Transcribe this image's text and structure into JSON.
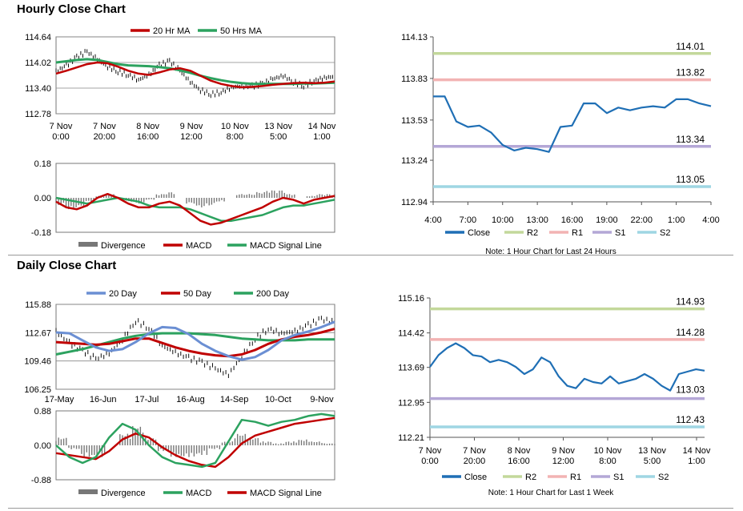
{
  "titles": {
    "hourly": "Hourly Close Chart",
    "daily": "Daily Close Chart"
  },
  "colors": {
    "ma20h": "#c00000",
    "ma50h": "#2ca25f",
    "divergence": "#777777",
    "macd_h": "#c00000",
    "signal_h": "#2ca25f",
    "close": "#1f6fb5",
    "r2": "#c3d89b",
    "r1": "#f2b3b3",
    "s1": "#b4a7d6",
    "s2": "#9fd6e3",
    "d20": "#6b8fd3",
    "d50": "#c00000",
    "d200": "#2ca25f",
    "macd_d": "#2ca25f",
    "signal_d": "#c00000"
  },
  "chart_data": [
    {
      "type": "line",
      "title": "Hourly Close Chart",
      "x_ticks": [
        "7 Nov\n0:00",
        "7 Nov\n20:00",
        "8 Nov\n16:00",
        "9 Nov\n12:00",
        "10 Nov\n8:00",
        "13 Nov\n5:00",
        "14 Nov\n1:00"
      ],
      "y_ticks": [
        "114.64",
        "114.02",
        "113.40",
        "112.78"
      ],
      "ylim": [
        112.78,
        114.64
      ],
      "legend": [
        "20 Hr MA",
        "50 Hrs MA"
      ],
      "legend_position": "top",
      "grid": true,
      "series": [
        {
          "name": "20 Hr MA",
          "values": [
            113.75,
            113.82,
            113.9,
            113.98,
            114.02,
            114.0,
            113.92,
            113.82,
            113.75,
            113.72,
            113.78,
            113.85,
            113.88,
            113.82,
            113.7,
            113.58,
            113.5,
            113.45,
            113.42,
            113.43,
            113.45,
            113.48,
            113.5,
            113.52,
            113.53,
            113.52,
            113.53,
            113.56
          ]
        },
        {
          "name": "50 Hrs MA",
          "values": [
            114.02,
            114.05,
            114.08,
            114.1,
            114.08,
            114.03,
            113.98,
            113.95,
            113.94,
            113.93,
            113.91,
            113.88,
            113.83,
            113.77,
            113.7,
            113.64,
            113.59,
            113.55,
            113.52,
            113.5,
            113.5,
            113.5,
            113.5,
            113.5,
            113.51,
            113.51,
            113.52,
            113.53
          ]
        },
        {
          "name": "Close",
          "values": [
            113.8,
            113.95,
            114.15,
            114.28,
            114.1,
            113.92,
            113.8,
            113.72,
            113.6,
            113.72,
            113.95,
            114.05,
            113.82,
            113.55,
            113.35,
            113.25,
            113.3,
            113.42,
            113.45,
            113.45,
            113.5,
            113.62,
            113.7,
            113.55,
            113.45,
            113.58,
            113.65,
            113.68
          ]
        }
      ]
    },
    {
      "type": "bar",
      "title": "",
      "y_ticks": [
        "0.18",
        "0.00",
        "-0.18"
      ],
      "ylim": [
        -0.18,
        0.18
      ],
      "legend": [
        "Divergence",
        "MACD",
        "MACD Signal Line"
      ],
      "legend_position": "bottom",
      "series": [
        {
          "name": "Divergence",
          "values": [
            -0.04,
            -0.06,
            -0.05,
            -0.02,
            0.01,
            0.02,
            0.0,
            -0.02,
            -0.03,
            -0.01,
            0.02,
            0.03,
            0.0,
            -0.03,
            -0.05,
            -0.04,
            -0.02,
            0.0,
            0.02,
            0.02,
            0.03,
            0.04,
            0.04,
            0.02,
            0.0,
            0.01,
            0.02,
            0.02
          ]
        },
        {
          "name": "MACD",
          "values": [
            -0.02,
            -0.05,
            -0.06,
            -0.04,
            0.0,
            0.02,
            0.0,
            -0.03,
            -0.05,
            -0.05,
            -0.03,
            -0.02,
            -0.04,
            -0.08,
            -0.12,
            -0.14,
            -0.13,
            -0.11,
            -0.09,
            -0.07,
            -0.05,
            -0.02,
            0.0,
            -0.01,
            -0.03,
            -0.01,
            0.0,
            0.01
          ]
        },
        {
          "name": "MACD Signal Line",
          "values": [
            0.0,
            -0.01,
            -0.02,
            -0.03,
            -0.02,
            -0.01,
            0.0,
            -0.01,
            -0.02,
            -0.04,
            -0.05,
            -0.05,
            -0.05,
            -0.06,
            -0.08,
            -0.1,
            -0.12,
            -0.12,
            -0.11,
            -0.1,
            -0.09,
            -0.07,
            -0.05,
            -0.04,
            -0.04,
            -0.03,
            -0.02,
            -0.01
          ]
        }
      ]
    },
    {
      "type": "line",
      "title": "",
      "x_ticks": [
        "4:00",
        "7:00",
        "10:00",
        "13:00",
        "16:00",
        "19:00",
        "22:00",
        "1:00",
        "4:00"
      ],
      "y_ticks": [
        "114.13",
        "113.83",
        "113.53",
        "113.24",
        "112.94"
      ],
      "ylim": [
        112.94,
        114.13
      ],
      "legend": [
        "Close",
        "R2",
        "R1",
        "S1",
        "S2"
      ],
      "legend_position": "bottom",
      "note": "Note: 1 Hour Chart for Last 24 Hours",
      "levels": [
        {
          "name": "R2",
          "value": 114.01,
          "label": "114.01"
        },
        {
          "name": "R1",
          "value": 113.82,
          "label": "113.82"
        },
        {
          "name": "S1",
          "value": 113.34,
          "label": "113.34"
        },
        {
          "name": "S2",
          "value": 113.05,
          "label": "113.05"
        }
      ],
      "series": [
        {
          "name": "Close",
          "values": [
            113.7,
            113.7,
            113.52,
            113.48,
            113.49,
            113.44,
            113.35,
            113.31,
            113.33,
            113.32,
            113.3,
            113.48,
            113.49,
            113.65,
            113.65,
            113.58,
            113.62,
            113.6,
            113.62,
            113.63,
            113.62,
            113.68,
            113.68,
            113.65,
            113.63
          ]
        }
      ]
    },
    {
      "type": "line",
      "title": "Daily Close Chart",
      "x_ticks": [
        "17-May",
        "16-Jun",
        "17-Jul",
        "16-Aug",
        "14-Sep",
        "10-Oct",
        "9-Nov"
      ],
      "y_ticks": [
        "115.88",
        "112.67",
        "109.46",
        "106.25"
      ],
      "ylim": [
        106.25,
        115.88
      ],
      "legend": [
        "20 Day",
        "50 Day",
        "200 Day"
      ],
      "legend_position": "top",
      "grid": true,
      "series": [
        {
          "name": "20 Day",
          "values": [
            112.7,
            112.6,
            111.8,
            111.0,
            110.6,
            110.8,
            111.6,
            112.6,
            113.3,
            113.2,
            112.5,
            111.4,
            110.6,
            110.0,
            109.6,
            109.9,
            110.7,
            111.8,
            112.4,
            112.8,
            113.3,
            113.9
          ]
        },
        {
          "name": "50 Day",
          "values": [
            111.6,
            111.5,
            111.4,
            111.3,
            111.4,
            111.7,
            112.0,
            112.0,
            111.5,
            111.0,
            110.6,
            110.3,
            110.1,
            110.0,
            110.2,
            110.7,
            111.4,
            111.9,
            112.2,
            112.4,
            112.7,
            113.1
          ]
        },
        {
          "name": "200 Day",
          "values": [
            110.2,
            110.5,
            110.8,
            111.2,
            111.6,
            112.0,
            112.3,
            112.5,
            112.6,
            112.6,
            112.6,
            112.5,
            112.4,
            112.2,
            112.0,
            111.9,
            111.8,
            111.8,
            111.8,
            111.9,
            111.9,
            111.9
          ]
        },
        {
          "name": "Close",
          "values": [
            112.8,
            111.5,
            110.6,
            109.7,
            110.3,
            111.9,
            114.0,
            113.2,
            111.2,
            110.4,
            109.8,
            109.3,
            108.6,
            107.9,
            110.0,
            112.0,
            113.1,
            112.6,
            112.8,
            113.5,
            114.2,
            113.8
          ]
        }
      ]
    },
    {
      "type": "bar",
      "title": "",
      "y_ticks": [
        "0.88",
        "0.00",
        "-0.88"
      ],
      "ylim": [
        -0.88,
        0.88
      ],
      "legend": [
        "Divergence",
        "MACD",
        "MACD Signal Line"
      ],
      "legend_position": "bottom",
      "series": [
        {
          "name": "Divergence",
          "values": [
            0.2,
            -0.1,
            -0.3,
            -0.3,
            0.0,
            0.3,
            0.5,
            0.2,
            -0.15,
            -0.3,
            -0.3,
            -0.25,
            -0.1,
            0.1,
            0.3,
            0.2,
            0.1,
            0.05,
            0.1,
            0.15,
            0.1,
            0.05
          ]
        },
        {
          "name": "MACD",
          "values": [
            0.0,
            -0.3,
            -0.45,
            -0.3,
            0.2,
            0.55,
            0.4,
            0.0,
            -0.3,
            -0.45,
            -0.5,
            -0.55,
            -0.45,
            0.1,
            0.65,
            0.6,
            0.5,
            0.6,
            0.65,
            0.75,
            0.8,
            0.75
          ]
        },
        {
          "name": "MACD Signal Line",
          "values": [
            -0.2,
            -0.25,
            -0.3,
            -0.35,
            -0.15,
            0.15,
            0.3,
            0.2,
            -0.05,
            -0.25,
            -0.4,
            -0.5,
            -0.55,
            -0.3,
            0.05,
            0.25,
            0.35,
            0.45,
            0.55,
            0.6,
            0.65,
            0.7
          ]
        }
      ]
    },
    {
      "type": "line",
      "title": "",
      "x_ticks": [
        "7 Nov\n0:00",
        "7 Nov\n20:00",
        "8 Nov\n16:00",
        "9 Nov\n12:00",
        "10 Nov\n8:00",
        "13 Nov\n5:00",
        "14 Nov\n1:00"
      ],
      "y_ticks": [
        "115.16",
        "114.42",
        "113.69",
        "112.95",
        "112.21"
      ],
      "ylim": [
        112.21,
        115.16
      ],
      "legend": [
        "Close",
        "R2",
        "R1",
        "S1",
        "S2"
      ],
      "legend_position": "bottom",
      "note": "Note: 1 Hour Chart for Last 1 Week",
      "levels": [
        {
          "name": "R2",
          "value": 114.93,
          "label": "114.93"
        },
        {
          "name": "R1",
          "value": 114.28,
          "label": "114.28"
        },
        {
          "name": "S1",
          "value": 113.03,
          "label": "113.03"
        },
        {
          "name": "S2",
          "value": 112.43,
          "label": "112.43"
        }
      ],
      "series": [
        {
          "name": "Close",
          "values": [
            113.7,
            113.95,
            114.1,
            114.2,
            114.1,
            113.95,
            113.92,
            113.8,
            113.85,
            113.8,
            113.7,
            113.55,
            113.65,
            113.9,
            113.8,
            113.5,
            113.3,
            113.25,
            113.45,
            113.38,
            113.35,
            113.5,
            113.35,
            113.4,
            113.45,
            113.55,
            113.45,
            113.3,
            113.2,
            113.55,
            113.6,
            113.65,
            113.62
          ]
        }
      ]
    }
  ]
}
